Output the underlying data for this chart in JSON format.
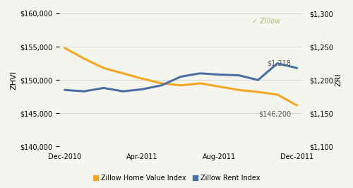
{
  "x_labels": [
    "Dec-2010",
    "Apr-2011",
    "Aug-2011",
    "Dec-2011"
  ],
  "x_ticks": [
    0,
    4,
    8,
    12
  ],
  "zhvi": [
    154800,
    153200,
    151800,
    151000,
    150200,
    149500,
    149200,
    149500,
    149000,
    148500,
    148200,
    147800,
    146200
  ],
  "zri": [
    1185,
    1183,
    1188,
    1183,
    1186,
    1192,
    1205,
    1210,
    1208,
    1207,
    1200,
    1225,
    1218
  ],
  "zhvi_color": "#F5A623",
  "zri_color": "#4A6FA5",
  "zhvi_label": "Zillow Home Value Index",
  "zri_label": "Zillow Rent Index",
  "ylabel_left": "ZHVI",
  "ylabel_right": "ZRI",
  "ylim_left": [
    140000,
    160000
  ],
  "ylim_right": [
    1100,
    1300
  ],
  "yticks_left": [
    140000,
    145000,
    150000,
    155000,
    160000
  ],
  "yticks_right": [
    1100,
    1150,
    1200,
    1250,
    1300
  ],
  "annotation_zhvi": "$146,200",
  "annotation_zri": "$1,218",
  "bg_color": "#F5F5F0",
  "grid_color": "#CCCCCC",
  "watermark": "✓ Zillow",
  "line_width": 2.2
}
